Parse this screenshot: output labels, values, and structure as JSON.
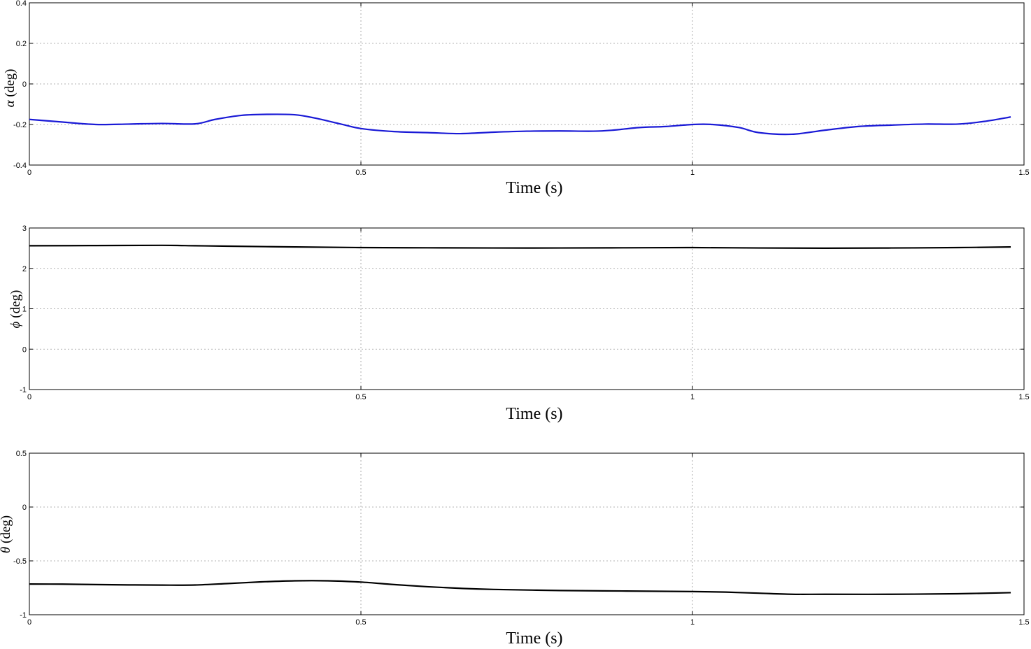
{
  "chart_data": [
    {
      "type": "line",
      "xlabel": "Time (s)",
      "ylabel": {
        "symbol": "α",
        "unit": "(deg)"
      },
      "xlim": [
        0,
        1.5
      ],
      "ylim": [
        -0.4,
        0.4
      ],
      "xticks": [
        0,
        0.5,
        1,
        1.5
      ],
      "xtick_labels": [
        "0",
        "0.5",
        "1",
        "1.5"
      ],
      "yticks": [
        -0.4,
        -0.2,
        0,
        0.2,
        0.4
      ],
      "ytick_labels": [
        "-0.4",
        "-0.2",
        "0",
        "0.2",
        "0.4"
      ],
      "grid": true,
      "color": "#1a1ad6",
      "series": [
        {
          "x": [
            0,
            0.05,
            0.1,
            0.15,
            0.2,
            0.25,
            0.28,
            0.32,
            0.36,
            0.4,
            0.43,
            0.47,
            0.5,
            0.55,
            0.6,
            0.65,
            0.7,
            0.75,
            0.8,
            0.85,
            0.88,
            0.92,
            0.96,
            1.0,
            1.03,
            1.07,
            1.1,
            1.15,
            1.2,
            1.25,
            1.3,
            1.35,
            1.4,
            1.44,
            1.48
          ],
          "y": [
            -0.175,
            -0.188,
            -0.2,
            -0.198,
            -0.195,
            -0.197,
            -0.175,
            -0.155,
            -0.15,
            -0.152,
            -0.168,
            -0.198,
            -0.22,
            -0.235,
            -0.24,
            -0.245,
            -0.238,
            -0.233,
            -0.232,
            -0.233,
            -0.228,
            -0.215,
            -0.21,
            -0.2,
            -0.2,
            -0.215,
            -0.24,
            -0.248,
            -0.228,
            -0.21,
            -0.203,
            -0.198,
            -0.198,
            -0.185,
            -0.163
          ]
        }
      ]
    },
    {
      "type": "line",
      "xlabel": "Time (s)",
      "ylabel": {
        "symbol": "ϕ",
        "unit": "(deg)"
      },
      "xlim": [
        0,
        1.5
      ],
      "ylim": [
        -1,
        3
      ],
      "xticks": [
        0,
        0.5,
        1,
        1.5
      ],
      "xtick_labels": [
        "0",
        "0.5",
        "1",
        "1.5"
      ],
      "yticks": [
        -1,
        0,
        1,
        2,
        3
      ],
      "ytick_labels": [
        "-1",
        "0",
        "1",
        "2",
        "3"
      ],
      "grid": true,
      "color": "#000000",
      "series": [
        {
          "x": [
            0,
            0.1,
            0.2,
            0.25,
            0.3,
            0.4,
            0.5,
            0.6,
            0.7,
            0.8,
            0.9,
            1.0,
            1.1,
            1.2,
            1.3,
            1.4,
            1.48
          ],
          "y": [
            2.56,
            2.565,
            2.57,
            2.56,
            2.55,
            2.53,
            2.515,
            2.51,
            2.505,
            2.505,
            2.51,
            2.515,
            2.505,
            2.5,
            2.505,
            2.515,
            2.53
          ]
        }
      ]
    },
    {
      "type": "line",
      "xlabel": "Time (s)",
      "ylabel": {
        "symbol": "θ",
        "unit": "(deg)"
      },
      "xlim": [
        0,
        1.5
      ],
      "ylim": [
        -1,
        0.5
      ],
      "xticks": [
        0,
        0.5,
        1,
        1.5
      ],
      "xtick_labels": [
        "0",
        "0.5",
        "1",
        "1.5"
      ],
      "yticks": [
        -1,
        -0.5,
        0,
        0.5
      ],
      "ytick_labels": [
        "-1",
        "-0.5",
        "0",
        "0.5"
      ],
      "grid": true,
      "color": "#000000",
      "series": [
        {
          "x": [
            0,
            0.05,
            0.1,
            0.15,
            0.2,
            0.25,
            0.3,
            0.35,
            0.4,
            0.45,
            0.5,
            0.55,
            0.6,
            0.65,
            0.7,
            0.8,
            0.9,
            1.0,
            1.05,
            1.1,
            1.15,
            1.2,
            1.3,
            1.4,
            1.48
          ],
          "y": [
            -0.715,
            -0.716,
            -0.72,
            -0.723,
            -0.725,
            -0.724,
            -0.71,
            -0.695,
            -0.685,
            -0.685,
            -0.697,
            -0.72,
            -0.74,
            -0.755,
            -0.765,
            -0.775,
            -0.78,
            -0.785,
            -0.79,
            -0.8,
            -0.81,
            -0.81,
            -0.81,
            -0.805,
            -0.795
          ]
        }
      ]
    }
  ]
}
